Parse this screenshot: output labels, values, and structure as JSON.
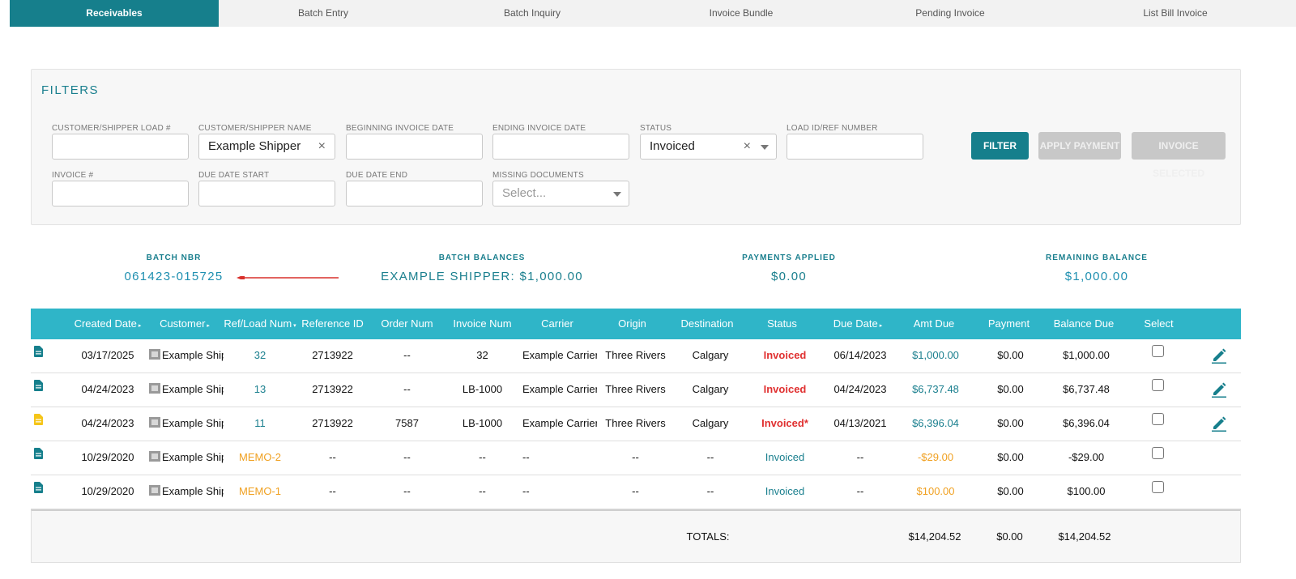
{
  "tabs": [
    "Receivables",
    "Batch Entry",
    "Batch Inquiry",
    "Invoice Bundle",
    "Pending Invoice",
    "List Bill Invoice"
  ],
  "filters": {
    "title": "FILTERS",
    "customer_load_label": "CUSTOMER/SHIPPER LOAD #",
    "customer_load_value": "",
    "customer_name_label": "CUSTOMER/SHIPPER NAME",
    "customer_name_value": "Example Shipper",
    "begin_date_label": "BEGINNING INVOICE DATE",
    "begin_date_value": "",
    "end_date_label": "ENDING INVOICE DATE",
    "end_date_value": "",
    "status_label": "STATUS",
    "status_value": "Invoiced",
    "load_ref_label": "LOAD ID/REF NUMBER",
    "load_ref_value": "",
    "invoice_label": "INVOICE #",
    "invoice_value": "",
    "due_start_label": "DUE DATE START",
    "due_start_value": "",
    "due_end_label": "DUE DATE END",
    "due_end_value": "",
    "missing_docs_label": "MISSING DOCUMENTS",
    "missing_docs_placeholder": "Select...",
    "clear_glyph": "×",
    "filter_button": "FILTER",
    "apply_payment_button": "APPLY PAYMENT",
    "invoice_selected_button": "INVOICE SELECTED"
  },
  "summary": {
    "batch_nbr_label": "BATCH NBR",
    "batch_nbr_value": "061423-015725",
    "batch_balances_label": "BATCH BALANCES",
    "batch_balances_value": "EXAMPLE SHIPPER: $1,000.00",
    "payments_applied_label": "PAYMENTS APPLIED",
    "payments_applied_value": "$0.00",
    "remaining_balance_label": "REMAINING BALANCE",
    "remaining_balance_value": "$1,000.00"
  },
  "table": {
    "headers": {
      "created_date": "Created Date",
      "customer": "Customer",
      "ref_load": "Ref/Load Num",
      "reference_id": "Reference ID",
      "order_num": "Order Num",
      "invoice_num": "Invoice Num",
      "carrier": "Carrier",
      "origin": "Origin",
      "destination": "Destination",
      "status": "Status",
      "due_date": "Due Date",
      "amt_due": "Amt Due",
      "payment": "Payment",
      "balance_due": "Balance Due",
      "select": "Select"
    },
    "sort_glyph": "▸",
    "sort_down_glyph": "▾",
    "rows": [
      {
        "created": "03/17/2025",
        "customer": "Example Shipper",
        "ref": "32",
        "refid": "2713922",
        "order": "--",
        "invoice": "32",
        "carrier": "Example Carrier",
        "origin": "Three Rivers",
        "dest": "Calgary",
        "status": "Invoiced",
        "due": "06/14/2023",
        "amt": "$1,000.00",
        "payment": "$0.00",
        "balance": "$1,000.00"
      },
      {
        "created": "04/24/2023",
        "customer": "Example Shipper",
        "ref": "13",
        "refid": "2713922",
        "order": "--",
        "invoice": "LB-1000",
        "carrier": "Example Carrier",
        "origin": "Three Rivers",
        "dest": "Calgary",
        "status": "Invoiced",
        "due": "04/24/2023",
        "amt": "$6,737.48",
        "payment": "$0.00",
        "balance": "$6,737.48"
      },
      {
        "created": "04/24/2023",
        "customer": "Example Shipper",
        "ref": "11",
        "refid": "2713922",
        "order": "7587",
        "invoice": "LB-1000",
        "carrier": "Example Carrier",
        "origin": "Three Rivers",
        "dest": "Calgary",
        "status": "Invoiced*",
        "due": "04/13/2021",
        "amt": "$6,396.04",
        "payment": "$0.00",
        "balance": "$6,396.04"
      },
      {
        "created": "10/29/2020",
        "customer": "Example Shipper",
        "ref": "MEMO-2",
        "refid": "--",
        "order": "--",
        "invoice": "--",
        "carrier": "--",
        "origin": "--",
        "dest": "--",
        "status": "Invoiced",
        "due": "--",
        "amt": "-$29.00",
        "payment": "$0.00",
        "balance": "-$29.00"
      },
      {
        "created": "10/29/2020",
        "customer": "Example Shipper",
        "ref": "MEMO-1",
        "refid": "--",
        "order": "--",
        "invoice": "--",
        "carrier": "--",
        "origin": "--",
        "dest": "--",
        "status": "Invoiced",
        "due": "--",
        "amt": "$100.00",
        "payment": "$0.00",
        "balance": "$100.00"
      }
    ],
    "totals": {
      "label": "TOTALS:",
      "amt": "$14,204.52",
      "payment": "$0.00",
      "balance": "$14,204.52"
    }
  },
  "colors": {
    "teal": "#167f8c",
    "header_bg": "#2fb5c8",
    "link_blue": "#1e8fb0",
    "status_red": "#e03030",
    "memo_orange": "#f0a020",
    "doc_yellow": "#f5c518"
  },
  "icons": {
    "doc_icon": "document-icon",
    "customer_icon": "customer-icon",
    "edit_icon": "pencil-icon",
    "arrow": "red-arrow"
  }
}
